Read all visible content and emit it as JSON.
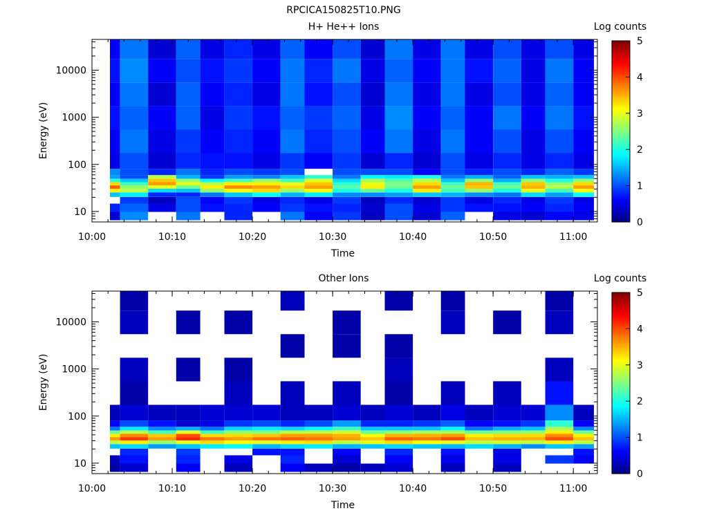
{
  "figure": {
    "title": "RPCICA150825T10.PNG"
  },
  "colorbar": {
    "label": "Log counts",
    "ticks": [
      "0",
      "1",
      "2",
      "3",
      "4",
      "5"
    ],
    "range": [
      0,
      5
    ],
    "stops": [
      "#00007f",
      "#0000ff",
      "#0080ff",
      "#00ffff",
      "#80ff80",
      "#ffff00",
      "#ff8000",
      "#ff0000",
      "#7f0000"
    ]
  },
  "chart_data": [
    {
      "type": "heatmap",
      "title": "H+ He++ Ions",
      "xlabel": "Time",
      "ylabel": "Energy (eV)",
      "x_ticks": [
        "10:00",
        "10:10",
        "10:20",
        "10:30",
        "10:40",
        "10:50",
        "11:00"
      ],
      "y_ticks": [
        "10",
        "100",
        "1000",
        "10000"
      ],
      "yscale": "log",
      "xlim": [
        "10:00",
        "11:03"
      ],
      "ylim": [
        6,
        45000
      ],
      "zlim": [
        0,
        5
      ],
      "time_bins": [
        "10:02",
        "10:05",
        "10:09",
        "10:12",
        "10:15",
        "10:18",
        "10:22",
        "10:25",
        "10:28",
        "10:32",
        "10:35",
        "10:38",
        "10:42",
        "10:45",
        "10:48",
        "10:52",
        "10:55",
        "10:58",
        "11:02"
      ],
      "energy_bands_eV": [
        8,
        12,
        18,
        23,
        28,
        33,
        39,
        45,
        54,
        65,
        100,
        300,
        1000,
        3000,
        10000,
        30000
      ],
      "intensity_log_counts": [
        [
          0.4,
          0.8,
          0.0,
          1.6,
          3.2,
          3.9,
          3.3,
          2.1,
          1.4,
          1.3,
          0.5,
          0.6,
          0.7,
          0.6,
          0.7,
          0.6
        ],
        [
          1.3,
          1.1,
          0.9,
          1.8,
          2.8,
          2.6,
          2.2,
          1.6,
          1.0,
          1.0,
          1.0,
          1.2,
          1.1,
          1.2,
          1.3,
          1.2
        ],
        [
          0.0,
          0.5,
          0.3,
          0.8,
          1.7,
          3.0,
          3.6,
          3.4,
          2.8,
          0.8,
          0.4,
          0.5,
          0.6,
          0.4,
          0.6,
          0.4
        ],
        [
          1.2,
          1.0,
          1.0,
          0.8,
          1.6,
          2.4,
          3.0,
          2.6,
          1.5,
          1.2,
          0.8,
          0.9,
          1.1,
          1.1,
          1.0,
          1.1
        ],
        [
          0.0,
          0.7,
          0.6,
          1.2,
          2.6,
          3.2,
          2.8,
          1.9,
          0.9,
          0.8,
          0.7,
          0.6,
          0.5,
          0.6,
          0.7,
          0.5
        ],
        [
          0.8,
          0.8,
          0.9,
          1.6,
          3.1,
          3.7,
          3.2,
          2.2,
          1.4,
          1.0,
          0.7,
          0.8,
          0.9,
          0.8,
          0.9,
          0.8
        ],
        [
          0.0,
          0.6,
          0.5,
          1.9,
          3.3,
          3.6,
          3.2,
          2.6,
          1.3,
          0.9,
          0.5,
          0.6,
          0.7,
          0.5,
          0.6,
          0.5
        ],
        [
          1.2,
          0.9,
          0.8,
          1.5,
          2.6,
          3.3,
          3.0,
          2.2,
          1.6,
          1.0,
          0.9,
          1.2,
          1.1,
          1.2,
          1.2,
          1.1
        ],
        [
          0.6,
          0.7,
          0.5,
          1.8,
          3.1,
          3.6,
          3.4,
          3.0,
          2.1,
          0.0,
          0.6,
          0.8,
          0.9,
          0.7,
          0.8,
          0.6
        ],
        [
          0.9,
          0.8,
          0.9,
          1.3,
          2.0,
          2.3,
          2.1,
          1.7,
          1.2,
          1.0,
          0.9,
          1.0,
          1.1,
          1.0,
          1.2,
          1.0
        ],
        [
          0.3,
          0.4,
          0.3,
          1.3,
          2.4,
          3.2,
          3.0,
          2.7,
          1.9,
          1.0,
          0.4,
          0.6,
          0.5,
          0.4,
          0.5,
          0.4
        ],
        [
          1.0,
          1.0,
          0.8,
          1.4,
          2.0,
          2.4,
          2.5,
          2.3,
          1.8,
          1.0,
          0.8,
          1.2,
          1.3,
          1.2,
          1.1,
          1.2
        ],
        [
          0.4,
          0.5,
          0.4,
          1.6,
          3.2,
          3.6,
          3.3,
          2.8,
          2.0,
          0.6,
          0.4,
          0.5,
          0.6,
          0.5,
          0.6,
          0.5
        ],
        [
          1.1,
          0.9,
          0.9,
          1.5,
          2.2,
          2.4,
          2.2,
          1.6,
          1.2,
          1.0,
          1.0,
          1.2,
          1.1,
          1.2,
          1.2,
          1.2
        ],
        [
          0.0,
          0.7,
          0.5,
          1.3,
          2.6,
          3.4,
          3.5,
          2.6,
          1.5,
          0.8,
          0.5,
          0.6,
          0.6,
          0.5,
          0.7,
          0.5
        ],
        [
          0.5,
          0.7,
          0.8,
          1.2,
          2.0,
          2.4,
          2.2,
          1.5,
          1.1,
          1.0,
          0.8,
          1.0,
          1.2,
          1.0,
          1.1,
          1.0
        ],
        [
          0.4,
          0.6,
          0.5,
          1.7,
          3.0,
          3.5,
          3.4,
          2.6,
          1.6,
          0.8,
          0.5,
          0.5,
          0.6,
          0.5,
          0.5,
          0.5
        ],
        [
          0.6,
          0.8,
          0.9,
          1.4,
          2.2,
          2.8,
          2.6,
          2.0,
          1.5,
          1.1,
          0.8,
          1.0,
          1.2,
          1.1,
          1.2,
          1.0
        ],
        [
          0.5,
          0.6,
          0.5,
          1.9,
          3.1,
          3.6,
          3.3,
          2.6,
          1.6,
          0.9,
          0.5,
          0.6,
          0.7,
          0.6,
          0.6,
          0.5
        ]
      ]
    },
    {
      "type": "heatmap",
      "title": "Other Ions",
      "xlabel": "Time",
      "ylabel": "Energy (eV)",
      "x_ticks": [
        "10:00",
        "10:10",
        "10:20",
        "10:30",
        "10:40",
        "10:50",
        "11:00"
      ],
      "y_ticks": [
        "10",
        "100",
        "1000",
        "10000"
      ],
      "yscale": "log",
      "xlim": [
        "10:00",
        "11:03"
      ],
      "ylim": [
        6,
        45000
      ],
      "zlim": [
        0,
        5
      ],
      "time_bins": [
        "10:02",
        "10:05",
        "10:09",
        "10:12",
        "10:15",
        "10:18",
        "10:22",
        "10:25",
        "10:28",
        "10:32",
        "10:35",
        "10:38",
        "10:42",
        "10:45",
        "10:48",
        "10:52",
        "10:55",
        "10:58",
        "11:02"
      ],
      "energy_bands_eV": [
        8,
        12,
        18,
        23,
        28,
        33,
        39,
        45,
        54,
        65,
        100,
        300,
        1000,
        3000,
        10000,
        30000
      ],
      "intensity_log_counts": [
        [
          0.2,
          0.3,
          0.0,
          1.6,
          2.8,
          3.6,
          3.2,
          2.4,
          1.2,
          0.6,
          0.3,
          0.0,
          0.0,
          0.0,
          0.0,
          0.0
        ],
        [
          0.4,
          0.7,
          0.8,
          1.7,
          3.2,
          4.1,
          3.7,
          2.8,
          1.8,
          1.0,
          0.4,
          0.2,
          0.3,
          0.0,
          0.3,
          0.2
        ],
        [
          0.0,
          0.0,
          0.0,
          1.4,
          2.6,
          3.6,
          3.4,
          2.2,
          1.3,
          0.7,
          0.3,
          0.0,
          0.0,
          0.0,
          0.0,
          0.0
        ],
        [
          0.6,
          0.8,
          0.9,
          1.6,
          3.0,
          4.2,
          4.0,
          3.0,
          1.5,
          0.4,
          0.3,
          0.0,
          0.2,
          0.0,
          0.2,
          0.0
        ],
        [
          0.0,
          0.0,
          0.0,
          1.8,
          3.3,
          3.8,
          3.3,
          2.2,
          1.2,
          0.5,
          0.4,
          0.0,
          0.0,
          0.0,
          0.0,
          0.0
        ],
        [
          0.3,
          0.5,
          0.0,
          1.9,
          3.1,
          3.6,
          3.3,
          2.6,
          1.7,
          0.9,
          0.4,
          0.3,
          0.2,
          0.0,
          0.2,
          0.0
        ],
        [
          0.0,
          0.0,
          0.7,
          1.5,
          3.0,
          3.8,
          3.4,
          2.5,
          1.8,
          1.0,
          0.4,
          0.0,
          0.0,
          0.0,
          0.0,
          0.0
        ],
        [
          0.6,
          0.8,
          0.7,
          1.7,
          3.2,
          3.9,
          3.6,
          2.8,
          1.7,
          0.8,
          0.3,
          0.3,
          0.0,
          0.2,
          0.0,
          0.3
        ],
        [
          0.3,
          0.0,
          0.0,
          1.8,
          3.3,
          3.8,
          3.6,
          2.8,
          1.9,
          1.0,
          0.3,
          0.0,
          0.0,
          0.0,
          0.0,
          0.0
        ],
        [
          0.2,
          0.4,
          0.6,
          1.5,
          2.8,
          3.6,
          3.5,
          2.9,
          2.2,
          1.4,
          0.4,
          0.3,
          0.0,
          0.2,
          0.2,
          0.0
        ],
        [
          0.3,
          0.0,
          0.0,
          1.6,
          3.0,
          3.4,
          3.1,
          2.4,
          1.6,
          0.8,
          0.3,
          0.0,
          0.0,
          0.0,
          0.0,
          0.0
        ],
        [
          0.4,
          0.6,
          0.8,
          1.7,
          3.3,
          3.9,
          3.5,
          2.6,
          1.6,
          0.8,
          0.4,
          0.2,
          0.3,
          0.2,
          0.0,
          0.2
        ],
        [
          0.0,
          0.0,
          0.0,
          1.6,
          3.1,
          3.8,
          3.5,
          2.7,
          1.6,
          0.9,
          0.3,
          0.0,
          0.0,
          0.0,
          0.0,
          0.0
        ],
        [
          0.3,
          0.5,
          0.7,
          1.5,
          3.0,
          4.0,
          3.6,
          2.7,
          1.9,
          1.1,
          0.5,
          0.3,
          0.0,
          0.0,
          0.3,
          0.2
        ],
        [
          0.0,
          0.0,
          0.0,
          1.7,
          2.8,
          3.4,
          3.2,
          2.4,
          1.2,
          0.6,
          0.3,
          0.0,
          0.0,
          0.0,
          0.0,
          0.0
        ],
        [
          0.3,
          0.5,
          0.5,
          1.5,
          2.9,
          3.5,
          3.3,
          2.5,
          1.5,
          0.7,
          0.4,
          0.3,
          0.0,
          0.0,
          0.2,
          0.0
        ],
        [
          0.0,
          0.0,
          0.0,
          1.3,
          2.8,
          3.5,
          3.3,
          2.6,
          1.6,
          0.9,
          0.4,
          0.0,
          0.0,
          0.0,
          0.0,
          0.0
        ],
        [
          0.0,
          0.9,
          0.0,
          1.6,
          3.2,
          4.0,
          3.7,
          3.2,
          2.7,
          2.1,
          1.3,
          0.7,
          0.3,
          0.0,
          0.3,
          0.2
        ],
        [
          0.0,
          0.6,
          0.7,
          1.4,
          2.8,
          3.4,
          3.2,
          2.4,
          1.3,
          0.6,
          0.3,
          0.0,
          0.0,
          0.0,
          0.0,
          0.0
        ]
      ]
    }
  ]
}
